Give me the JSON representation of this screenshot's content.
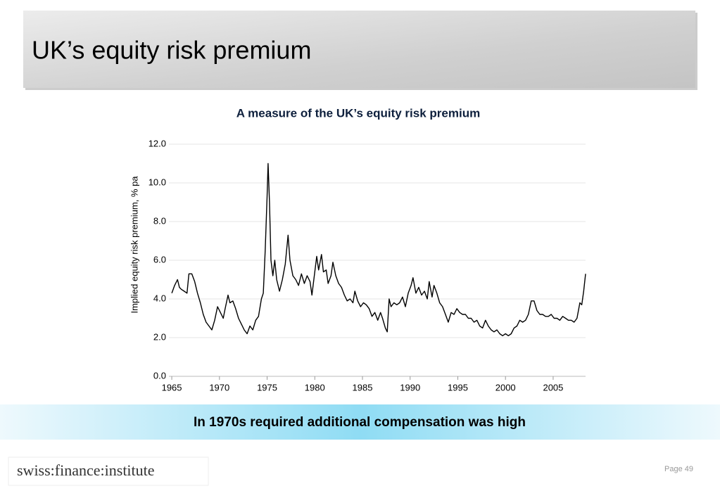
{
  "header": {
    "title": "UK’s equity risk premium"
  },
  "chart_data": {
    "type": "line",
    "title": "A measure of the UK’s equity risk premium",
    "ylabel": "Implied equity risk premium, % pa",
    "color": "#000000",
    "grid": true,
    "x": [
      1965.0,
      1965.3,
      1965.6,
      1965.8,
      1966.0,
      1966.3,
      1966.6,
      1966.8,
      1967.1,
      1967.4,
      1967.7,
      1968.0,
      1968.3,
      1968.6,
      1968.9,
      1969.2,
      1969.5,
      1969.8,
      1970.1,
      1970.4,
      1970.6,
      1970.9,
      1971.1,
      1971.4,
      1971.7,
      1972.0,
      1972.3,
      1972.6,
      1972.9,
      1973.2,
      1973.5,
      1973.8,
      1974.1,
      1974.4,
      1974.6,
      1974.8,
      1975.0,
      1975.1,
      1975.25,
      1975.4,
      1975.6,
      1975.8,
      1976.0,
      1976.3,
      1976.6,
      1976.9,
      1977.2,
      1977.4,
      1977.7,
      1978.0,
      1978.3,
      1978.6,
      1978.9,
      1979.2,
      1979.5,
      1979.7,
      1979.9,
      1980.2,
      1980.4,
      1980.7,
      1980.9,
      1981.2,
      1981.4,
      1981.7,
      1981.9,
      1982.2,
      1982.5,
      1982.8,
      1983.1,
      1983.4,
      1983.7,
      1984.0,
      1984.2,
      1984.5,
      1984.8,
      1985.1,
      1985.4,
      1985.7,
      1986.0,
      1986.3,
      1986.6,
      1986.9,
      1987.1,
      1987.4,
      1987.6,
      1987.8,
      1988.0,
      1988.3,
      1988.6,
      1988.9,
      1989.2,
      1989.5,
      1989.8,
      1990.1,
      1990.3,
      1990.6,
      1990.9,
      1991.2,
      1991.5,
      1991.8,
      1992.0,
      1992.3,
      1992.5,
      1992.8,
      1993.1,
      1993.4,
      1993.7,
      1994.0,
      1994.3,
      1994.6,
      1994.9,
      1995.2,
      1995.5,
      1995.8,
      1996.1,
      1996.4,
      1996.7,
      1997.0,
      1997.3,
      1997.6,
      1997.9,
      1998.2,
      1998.5,
      1998.8,
      1999.1,
      1999.4,
      1999.7,
      2000.0,
      2000.3,
      2000.6,
      2000.9,
      2001.2,
      2001.5,
      2001.8,
      2002.1,
      2002.4,
      2002.7,
      2003.0,
      2003.3,
      2003.6,
      2003.9,
      2004.2,
      2004.5,
      2004.8,
      2005.1,
      2005.4,
      2005.7,
      2006.0,
      2006.3,
      2006.6,
      2006.9,
      2007.2,
      2007.5,
      2007.8,
      2008.0,
      2008.2,
      2008.4
    ],
    "values": [
      4.3,
      4.7,
      5.0,
      4.6,
      4.5,
      4.4,
      4.3,
      5.3,
      5.3,
      4.9,
      4.3,
      3.8,
      3.2,
      2.8,
      2.6,
      2.4,
      2.9,
      3.6,
      3.3,
      3.0,
      3.5,
      4.2,
      3.8,
      3.9,
      3.5,
      3.0,
      2.7,
      2.4,
      2.2,
      2.6,
      2.4,
      2.9,
      3.1,
      4.0,
      4.3,
      6.5,
      9.3,
      11.0,
      9.0,
      6.0,
      5.2,
      6.0,
      5.0,
      4.4,
      5.0,
      5.8,
      7.3,
      6.0,
      5.2,
      5.0,
      4.7,
      5.3,
      4.8,
      5.2,
      4.9,
      4.2,
      5.0,
      6.2,
      5.5,
      6.3,
      5.4,
      5.5,
      4.8,
      5.2,
      5.9,
      5.2,
      4.8,
      4.6,
      4.2,
      3.9,
      4.0,
      3.8,
      4.4,
      3.9,
      3.6,
      3.8,
      3.7,
      3.5,
      3.1,
      3.3,
      2.9,
      3.3,
      3.0,
      2.5,
      2.3,
      4.0,
      3.6,
      3.8,
      3.7,
      3.8,
      4.1,
      3.6,
      4.3,
      4.7,
      5.1,
      4.3,
      4.6,
      4.2,
      4.4,
      4.0,
      4.9,
      4.1,
      4.7,
      4.3,
      3.8,
      3.6,
      3.2,
      2.8,
      3.3,
      3.2,
      3.5,
      3.3,
      3.2,
      3.2,
      3.0,
      3.0,
      2.8,
      2.9,
      2.6,
      2.5,
      2.9,
      2.6,
      2.4,
      2.3,
      2.4,
      2.2,
      2.1,
      2.2,
      2.1,
      2.2,
      2.5,
      2.6,
      2.9,
      2.8,
      2.9,
      3.2,
      3.9,
      3.9,
      3.4,
      3.2,
      3.2,
      3.1,
      3.1,
      3.2,
      3.0,
      3.0,
      2.9,
      3.1,
      3.0,
      2.9,
      2.9,
      2.8,
      3.0,
      3.8,
      3.7,
      4.4,
      5.3
    ],
    "xlim": [
      1964.7,
      2008.4
    ],
    "xticks": [
      1965,
      1970,
      1975,
      1980,
      1985,
      1990,
      1995,
      2000,
      2005
    ],
    "ylim": [
      0,
      12
    ],
    "yticks": [
      {
        "value": 0,
        "label": "0.0"
      },
      {
        "value": 2,
        "label": "2.0"
      },
      {
        "value": 4,
        "label": "4.0"
      },
      {
        "value": 6,
        "label": "6.0"
      },
      {
        "value": 8,
        "label": "8.0"
      },
      {
        "value": 10,
        "label": "10.0"
      },
      {
        "value": 12,
        "label": "12.0"
      }
    ]
  },
  "banner": {
    "text": "In 1970s required additional compensation was high"
  },
  "logo": {
    "text": "swiss:finance:institute"
  },
  "page": {
    "text": "Page 49"
  }
}
